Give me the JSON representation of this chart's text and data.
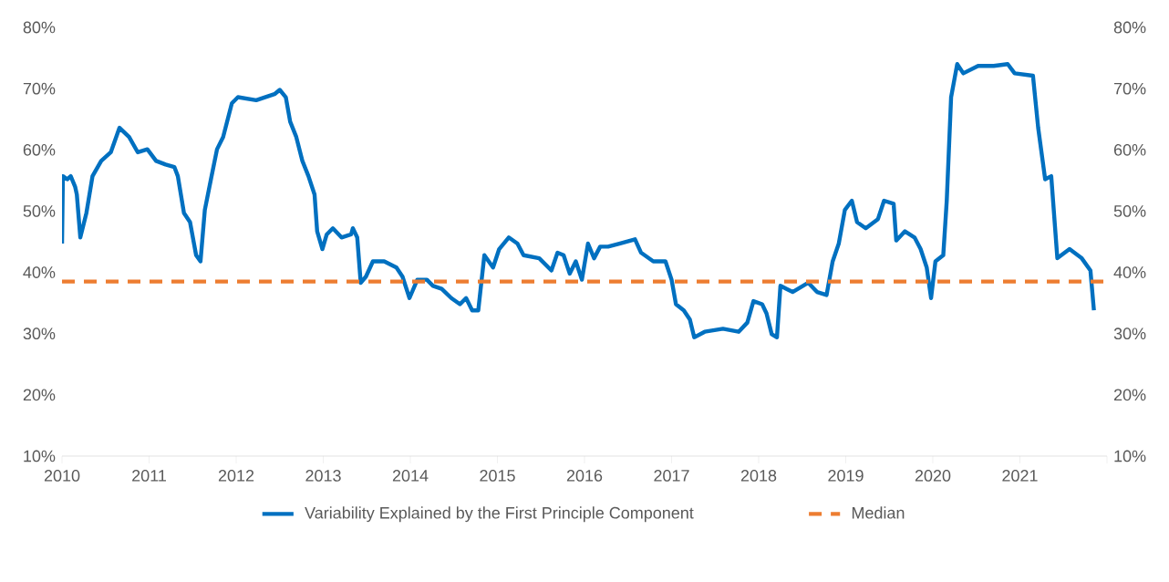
{
  "chart_data": {
    "type": "line",
    "x": [
      2010.0,
      2010.01,
      2010.06,
      2010.1,
      2010.15,
      2010.17,
      2010.21,
      2010.28,
      2010.35,
      2010.45,
      2010.56,
      2010.66,
      2010.77,
      2010.87,
      2010.98,
      2011.08,
      2011.19,
      2011.29,
      2011.33,
      2011.4,
      2011.47,
      2011.54,
      2011.59,
      2011.64,
      2011.71,
      2011.78,
      2011.85,
      2011.95,
      2012.02,
      2012.23,
      2012.44,
      2012.5,
      2012.57,
      2012.62,
      2012.69,
      2012.76,
      2012.83,
      2012.9,
      2012.93,
      2012.99,
      2013.04,
      2013.11,
      2013.21,
      2013.32,
      2013.34,
      2013.39,
      2013.43,
      2013.49,
      2013.57,
      2013.7,
      2013.84,
      2013.91,
      2013.99,
      2014.08,
      2014.19,
      2014.26,
      2014.36,
      2014.47,
      2014.57,
      2014.64,
      2014.71,
      2014.78,
      2014.85,
      2014.95,
      2015.02,
      2015.13,
      2015.23,
      2015.3,
      2015.48,
      2015.62,
      2015.69,
      2015.76,
      2015.83,
      2015.9,
      2015.97,
      2016.04,
      2016.11,
      2016.18,
      2016.27,
      2016.4,
      2016.58,
      2016.65,
      2016.79,
      2016.93,
      2017.0,
      2017.05,
      2017.14,
      2017.21,
      2017.26,
      2017.38,
      2017.59,
      2017.77,
      2017.87,
      2017.94,
      2018.04,
      2018.09,
      2018.15,
      2018.21,
      2018.25,
      2018.32,
      2018.39,
      2018.57,
      2018.67,
      2018.78,
      2018.85,
      2018.92,
      2018.99,
      2019.07,
      2019.13,
      2019.23,
      2019.37,
      2019.44,
      2019.55,
      2019.58,
      2019.68,
      2019.79,
      2019.86,
      2019.93,
      2019.98,
      2020.03,
      2020.12,
      2020.16,
      2020.21,
      2020.28,
      2020.35,
      2020.52,
      2020.7,
      2020.86,
      2020.94,
      2021.15,
      2021.21,
      2021.29,
      2021.36,
      2021.43,
      2021.57,
      2021.71,
      2021.81,
      2021.85
    ],
    "series": [
      {
        "name": "Variability Explained by the First Principle Component",
        "color": "#0070c0",
        "values": [
          44.7,
          55.7,
          55.2,
          55.7,
          54,
          52.7,
          45.7,
          49.7,
          55.7,
          58.2,
          59.6,
          63.6,
          62.1,
          59.6,
          60.1,
          58.2,
          57.6,
          57.2,
          55.7,
          49.7,
          48.2,
          42.8,
          41.8,
          50.2,
          55.2,
          60.1,
          62.1,
          67.6,
          68.6,
          68.1,
          69.1,
          69.8,
          68.6,
          64.6,
          62.1,
          58.2,
          55.7,
          52.7,
          46.7,
          43.8,
          46.2,
          47.2,
          45.7,
          46.2,
          47.2,
          45.7,
          38.3,
          39.3,
          41.8,
          41.8,
          40.8,
          39.3,
          35.8,
          38.8,
          38.8,
          37.8,
          37.3,
          35.8,
          34.8,
          35.8,
          33.8,
          33.8,
          42.8,
          40.8,
          43.8,
          45.7,
          44.7,
          42.8,
          42.3,
          40.3,
          43.2,
          42.8,
          39.8,
          41.8,
          38.8,
          44.7,
          42.3,
          44.2,
          44.2,
          44.7,
          45.4,
          43.2,
          41.8,
          41.8,
          38.8,
          34.8,
          33.8,
          32.3,
          29.4,
          30.3,
          30.8,
          30.3,
          31.8,
          35.3,
          34.8,
          33.3,
          29.9,
          29.4,
          37.8,
          37.3,
          36.8,
          38.3,
          36.8,
          36.3,
          41.8,
          44.7,
          50.2,
          51.7,
          48.2,
          47.2,
          48.7,
          51.7,
          51.2,
          45.2,
          46.7,
          45.7,
          43.8,
          40.8,
          35.8,
          41.8,
          42.8,
          51.7,
          68.6,
          74.0,
          72.5,
          73.7,
          73.7,
          74.0,
          72.5,
          72.1,
          63.6,
          55.2,
          55.7,
          42.3,
          43.8,
          42.3,
          40.3,
          33.8
        ]
      }
    ],
    "ref_lines": [
      {
        "axis": "y",
        "value": 38.5,
        "label": "Median",
        "color": "#ed7d31",
        "line_style": "dashed"
      }
    ],
    "xlim": [
      2010,
      2022
    ],
    "xticks": [
      2010,
      2011,
      2012,
      2013,
      2014,
      2015,
      2016,
      2017,
      2018,
      2019,
      2020,
      2021,
      {
        "value": 2022,
        "label": null
      }
    ],
    "ylim": [
      10,
      80
    ],
    "yticks": [
      {
        "value": 10,
        "label": "10%"
      },
      {
        "value": 20,
        "label": "20%"
      },
      {
        "value": 30,
        "label": "30%"
      },
      {
        "value": 40,
        "label": "40%"
      },
      {
        "value": 50,
        "label": "50%"
      },
      {
        "value": 60,
        "label": "60%"
      },
      {
        "value": 70,
        "label": "70%"
      },
      {
        "value": 80,
        "label": "80%"
      }
    ],
    "y2lim": [
      10,
      80
    ],
    "y2ticks": [
      {
        "value": 10,
        "label": "10%"
      },
      {
        "value": 20,
        "label": "20%"
      },
      {
        "value": 30,
        "label": "30%"
      },
      {
        "value": 40,
        "label": "40%"
      },
      {
        "value": 50,
        "label": "50%"
      },
      {
        "value": 60,
        "label": "60%"
      },
      {
        "value": 70,
        "label": "70%"
      },
      {
        "value": 80,
        "label": "80%"
      }
    ],
    "legend": "bottom",
    "grid": false
  }
}
